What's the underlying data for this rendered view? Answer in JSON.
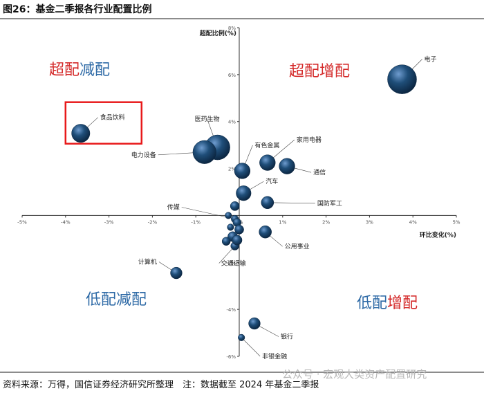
{
  "figure_title": "图26：基金二季报各行业配置比例",
  "source_note": "资料来源：万得，国信证券经济研究所整理　注：数据截至 2024 年基金二季报",
  "watermark": "公众号 · 宏观大类资产配置研究",
  "colors": {
    "bubble": "#1f4e79",
    "highlight": "#e8191a",
    "increase": "#d42a2a",
    "decrease": "#2e6aa6"
  },
  "chart_data": {
    "type": "scatter",
    "xlabel": "环比变化(%)",
    "ylabel": "超配比例(%)",
    "xlim": [
      -5,
      5
    ],
    "ylim": [
      -6,
      8
    ],
    "x_ticks": [
      "-5%",
      "-4%",
      "-3%",
      "-2%",
      "-1%",
      "0%",
      "1%",
      "2%",
      "3%",
      "4%",
      "5%"
    ],
    "y_ticks": [
      "-6%",
      "-4%",
      "-2%",
      "0%",
      "2%",
      "4%",
      "6%",
      "8%"
    ],
    "grid": false,
    "quadrants": [
      {
        "label": "超配减配",
        "position": "top-left",
        "tone": "decrease_prefix"
      },
      {
        "label": "超配增配",
        "position": "top-right",
        "tone": "increase"
      },
      {
        "label": "低配减配",
        "position": "bottom-left",
        "tone": "decrease"
      },
      {
        "label": "低配增配",
        "position": "bottom-right",
        "tone": "decrease_prefix"
      }
    ],
    "highlighted": "食品饮料",
    "points": [
      {
        "name": "电子",
        "x": 3.75,
        "y": 5.8,
        "size": 3.5
      },
      {
        "name": "食品饮料",
        "x": -3.65,
        "y": 3.5,
        "size": 2.2
      },
      {
        "name": "医药生物",
        "x": -0.5,
        "y": 2.9,
        "size": 3.0
      },
      {
        "name": "电力设备",
        "x": -0.8,
        "y": 2.7,
        "size": 2.8
      },
      {
        "name": "有色金属",
        "x": 0.07,
        "y": 1.9,
        "size": 1.9
      },
      {
        "name": "家用电器",
        "x": 0.65,
        "y": 2.25,
        "size": 1.9
      },
      {
        "name": "通信",
        "x": 1.1,
        "y": 2.1,
        "size": 1.9
      },
      {
        "name": "汽车",
        "x": 0.1,
        "y": 0.95,
        "size": 1.8
      },
      {
        "name": "国防军工",
        "x": 0.65,
        "y": 0.55,
        "size": 1.5
      },
      {
        "name": "传媒",
        "x": -0.1,
        "y": -0.15,
        "size": 0.9
      },
      {
        "name": "公用事业",
        "x": 0.6,
        "y": -0.7,
        "size": 1.5
      },
      {
        "name": "计算机",
        "x": -1.45,
        "y": -2.45,
        "size": 1.4
      },
      {
        "name": "交通运输",
        "x": -0.1,
        "y": -1.3,
        "size": 1.0
      },
      {
        "name": "银行",
        "x": 0.35,
        "y": -4.6,
        "size": 1.4
      },
      {
        "name": "非银金融",
        "x": 0.05,
        "y": -5.2,
        "size": 0.8
      },
      {
        "name": "",
        "x": -0.1,
        "y": 0.4,
        "size": 1.1
      },
      {
        "name": "",
        "x": -0.25,
        "y": 0.0,
        "size": 0.8
      },
      {
        "name": "",
        "x": -0.05,
        "y": -0.3,
        "size": 1.0
      },
      {
        "name": "",
        "x": 0.0,
        "y": -0.6,
        "size": 1.1
      },
      {
        "name": "",
        "x": -0.2,
        "y": -0.5,
        "size": 0.8
      },
      {
        "name": "",
        "x": -0.15,
        "y": -0.9,
        "size": 1.2
      },
      {
        "name": "",
        "x": -0.05,
        "y": -1.05,
        "size": 1.2
      },
      {
        "name": "",
        "x": -0.3,
        "y": -1.1,
        "size": 1.0
      }
    ]
  }
}
